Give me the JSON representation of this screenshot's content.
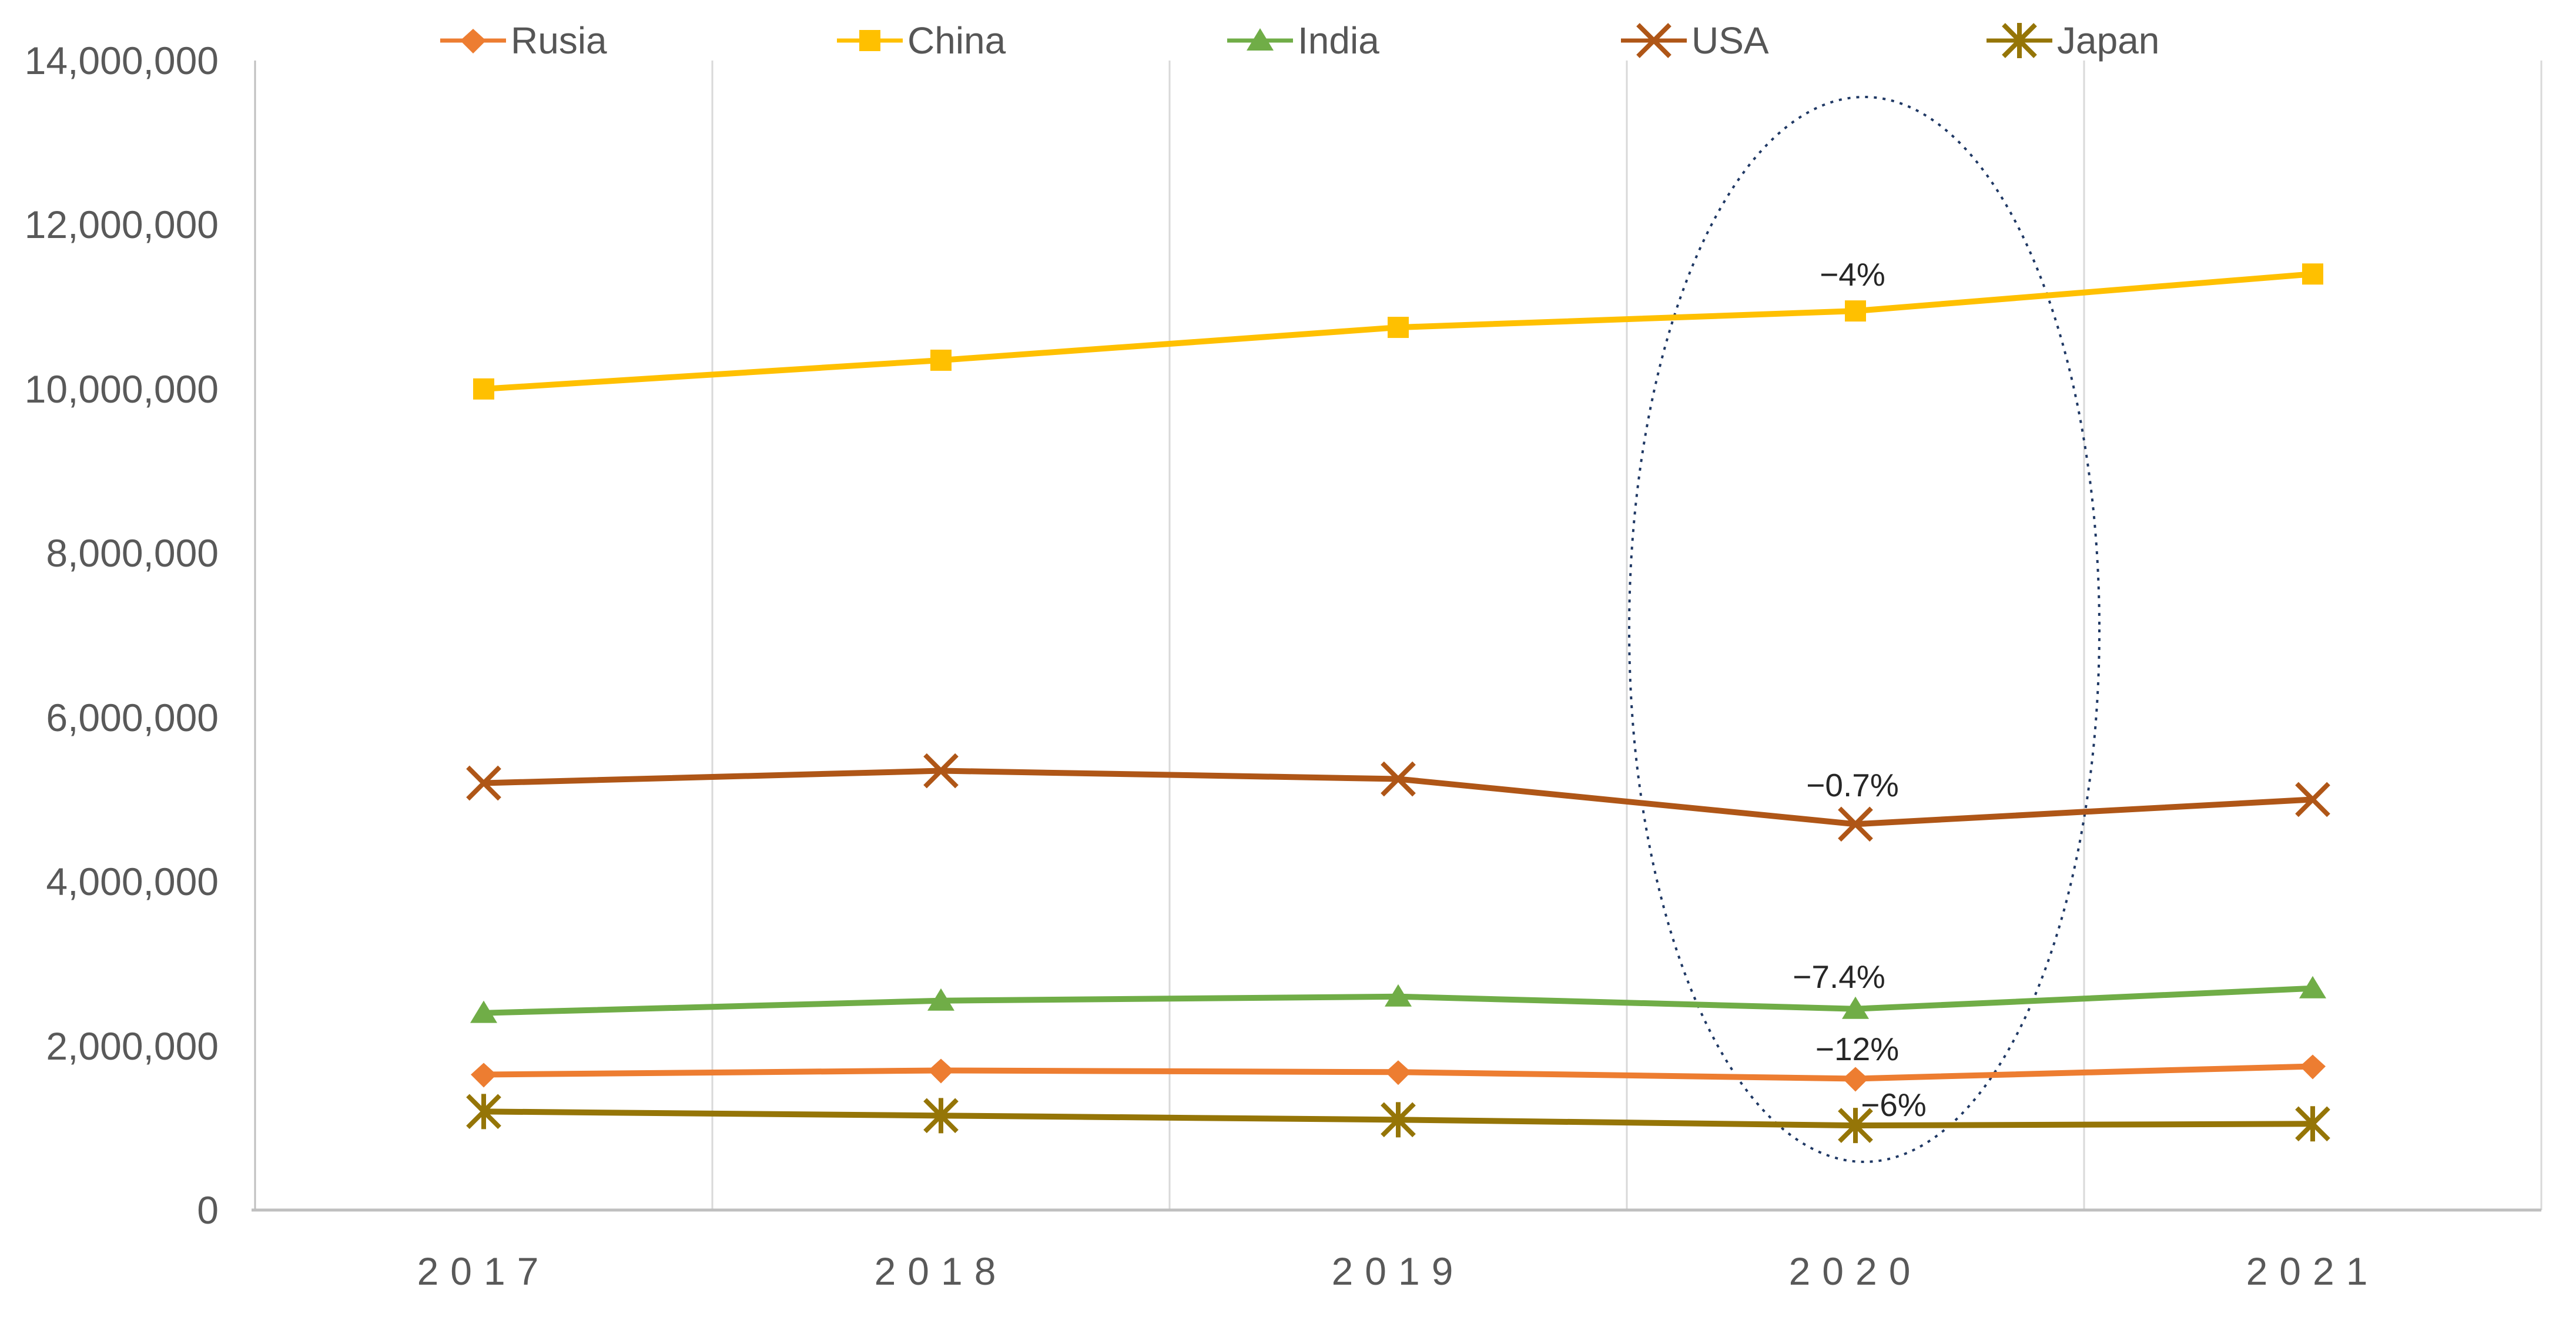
{
  "chart_data": {
    "type": "line",
    "title": "",
    "xlabel": "",
    "ylabel": "",
    "categories": [
      "2017",
      "2018",
      "2019",
      "2020",
      "2021"
    ],
    "series": [
      {
        "name": "Rusia",
        "color": "#ED7D31",
        "marker": "diamond",
        "values": [
          1650000,
          1700000,
          1680000,
          1600000,
          1750000
        ]
      },
      {
        "name": "China",
        "color": "#FFC000",
        "marker": "square",
        "values": [
          10000000,
          10350000,
          10750000,
          10950000,
          11400000
        ]
      },
      {
        "name": "India",
        "color": "#70AD47",
        "marker": "triangle",
        "values": [
          2400000,
          2550000,
          2600000,
          2450000,
          2700000
        ]
      },
      {
        "name": "USA",
        "color": "#AF5617",
        "marker": "x",
        "values": [
          5200000,
          5350000,
          5250000,
          4700000,
          5000000
        ]
      },
      {
        "name": "Japan",
        "color": "#957507",
        "marker": "star",
        "values": [
          1200000,
          1150000,
          1100000,
          1030000,
          1050000
        ]
      }
    ],
    "ylim": [
      0,
      14000000
    ],
    "ytick_step": 2000000,
    "yticks_labels": [
      "0",
      "2,000,000",
      "4,000,000",
      "6,000,000",
      "8,000,000",
      "10,000,000",
      "12,000,000",
      "14,000,000"
    ],
    "grid": "vertical-between-categories-only",
    "legend_position": "top",
    "annotations": [
      {
        "text": "−4%",
        "series": "China",
        "category": "2020"
      },
      {
        "text": "−0.7%",
        "series": "USA",
        "category": "2020"
      },
      {
        "text": "−7.4%",
        "series": "India",
        "category": "2020"
      },
      {
        "text": "−12%",
        "series": "Rusia",
        "category": "2020"
      },
      {
        "text": "−6%",
        "series": "Japan",
        "category": "2020"
      }
    ],
    "highlight_ellipse": {
      "around_category": "2020",
      "color": "#1F3864",
      "style": "dotted"
    },
    "colors": {
      "gridline": "#D9D9D9",
      "axis_line": "#BFBFBF",
      "tick_label": "#595959",
      "annotation_text": "#262626"
    }
  }
}
